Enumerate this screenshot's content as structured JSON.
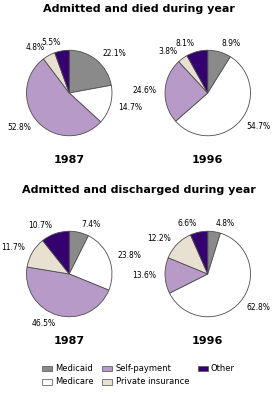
{
  "chart_data": [
    {
      "type": "pie",
      "title": "Admitted and died during year",
      "subtitle": "1987",
      "categories": [
        "Medicaid",
        "Medicare",
        "Self-payment",
        "Private insurance",
        "Other"
      ],
      "colors": [
        "#8a8a8a",
        "#ffffff",
        "#b89ac8",
        "#e8e0d0",
        "#350070"
      ],
      "values": [
        22.1,
        14.7,
        52.8,
        4.8,
        5.5
      ],
      "value_labels": [
        "22.1%",
        "14.7%",
        "52.8%",
        "4.8%",
        "5.5%"
      ],
      "data_labels": true,
      "legend": "lower center"
    },
    {
      "type": "pie",
      "title": "Admitted and died during year",
      "subtitle": "1996",
      "categories": [
        "Medicaid",
        "Medicare",
        "Self-payment",
        "Private insurance",
        "Other"
      ],
      "colors": [
        "#8a8a8a",
        "#ffffff",
        "#b89ac8",
        "#e8e0d0",
        "#350070"
      ],
      "values": [
        8.9,
        54.7,
        24.6,
        3.8,
        8.1
      ],
      "value_labels": [
        "8.9%",
        "54.7%",
        "24.6%",
        "3.8%",
        "8.1%"
      ],
      "data_labels": true
    },
    {
      "type": "pie",
      "title": "Admitted and discharged during year",
      "subtitle": "1987",
      "categories": [
        "Medicaid",
        "Medicare",
        "Self-payment",
        "Private insurance",
        "Other"
      ],
      "colors": [
        "#8a8a8a",
        "#ffffff",
        "#b89ac8",
        "#e8e0d0",
        "#350070"
      ],
      "values": [
        7.4,
        23.8,
        46.5,
        11.7,
        10.7
      ],
      "value_labels": [
        "7.4%",
        "23.8%",
        "46.5%",
        "11.7%",
        "10.7%"
      ],
      "data_labels": true
    },
    {
      "type": "pie",
      "title": "Admitted and discharged during year",
      "subtitle": "1996",
      "categories": [
        "Medicaid",
        "Medicare",
        "Self-payment",
        "Private insurance",
        "Other"
      ],
      "colors": [
        "#8a8a8a",
        "#ffffff",
        "#b89ac8",
        "#e8e0d0",
        "#350070"
      ],
      "values": [
        4.8,
        62.8,
        13.6,
        12.2,
        6.6
      ],
      "value_labels": [
        "4.8%",
        "62.8%",
        "13.6%",
        "12.2%",
        "6.6%"
      ],
      "data_labels": true
    }
  ]
}
